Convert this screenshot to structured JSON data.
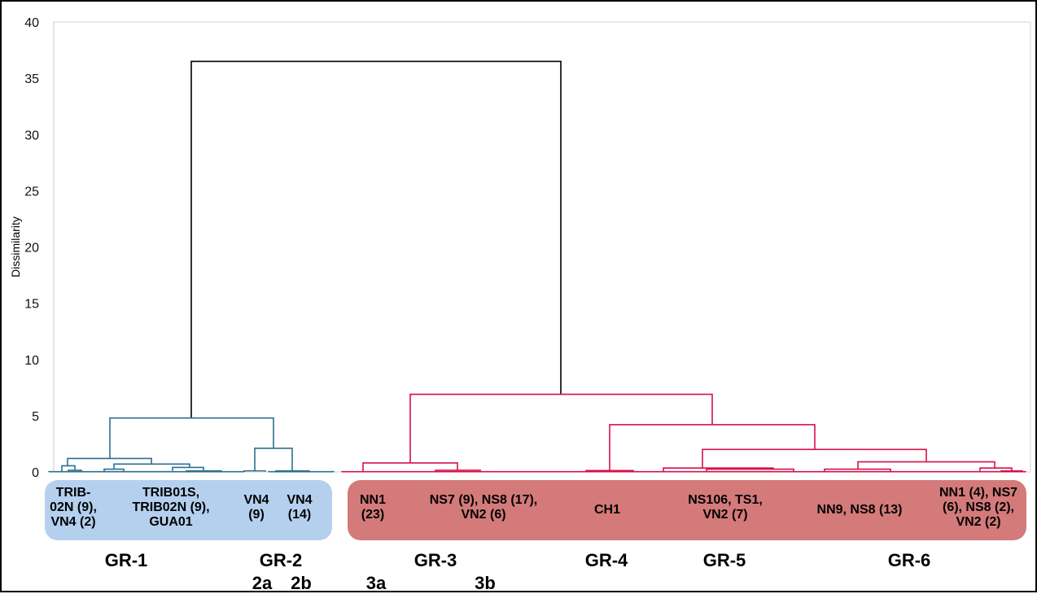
{
  "chart_data": {
    "type": "dendrogram",
    "ylabel": "Dissimilarity",
    "ylim": [
      0,
      40
    ],
    "yticks": [
      0,
      5,
      10,
      15,
      20,
      25,
      30,
      35,
      40
    ],
    "colors": {
      "left_cluster": "#2e6f8e",
      "right_cluster": "#d6104a",
      "root": "#000000",
      "left_box": "#b4d0ee",
      "right_box": "#d47a7a"
    },
    "merges": [
      {
        "height": 36.5,
        "color": "root"
      },
      {
        "height": 4.8,
        "color": "left_cluster"
      },
      {
        "height": 2.1,
        "color": "left_cluster"
      },
      {
        "height": 1.2,
        "color": "left_cluster"
      },
      {
        "height": 6.9,
        "color": "right_cluster"
      },
      {
        "height": 4.2,
        "color": "right_cluster"
      },
      {
        "height": 2.0,
        "color": "right_cluster"
      },
      {
        "height": 0.9,
        "color": "right_cluster"
      },
      {
        "height": 0.8,
        "color": "right_cluster"
      },
      {
        "height": 0.35,
        "color": "right_cluster"
      }
    ],
    "box_labels": [
      {
        "id": "gr1a",
        "text": "TRIB-\n02N (9),\nVN4 (2)"
      },
      {
        "id": "gr1b",
        "text": "TRIB01S,\nTRIB02N (9),\nGUA01"
      },
      {
        "id": "gr2a",
        "text": "VN4\n(9)"
      },
      {
        "id": "gr2b",
        "text": "VN4\n(14)"
      },
      {
        "id": "gr3a",
        "text": "NN1\n(23)"
      },
      {
        "id": "gr3b",
        "text": "NS7 (9), NS8 (17),\nVN2 (6)"
      },
      {
        "id": "gr4",
        "text": "CH1"
      },
      {
        "id": "gr5",
        "text": "NS106, TS1,\nVN2 (7)"
      },
      {
        "id": "gr6a",
        "text": "NN9, NS8 (13)"
      },
      {
        "id": "gr6b",
        "text": "NN1 (4), NS7\n(6), NS8 (2),\nVN2 (2)"
      }
    ],
    "groups": [
      "GR-1",
      "GR-2",
      "GR-3",
      "GR-4",
      "GR-5",
      "GR-6"
    ],
    "subgroups": [
      "2a",
      "2b",
      "3a",
      "3b"
    ]
  }
}
